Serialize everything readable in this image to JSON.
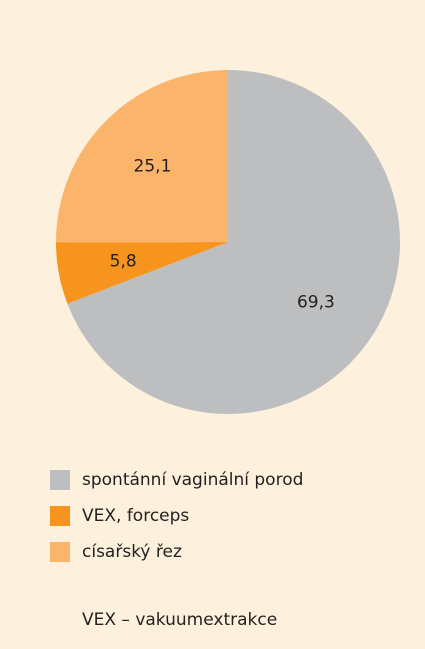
{
  "chart_data": {
    "type": "pie",
    "categories": [
      "spontánní vaginální porod",
      "VEX, forceps",
      "císařský řez"
    ],
    "values": [
      69.3,
      5.8,
      25.1
    ],
    "value_labels": [
      "69,3",
      "5,8",
      "25,1"
    ],
    "colors": [
      "#bdbec0",
      "#f7941d",
      "#fbb46c"
    ],
    "note": "VEX – vakuumextrakce"
  }
}
